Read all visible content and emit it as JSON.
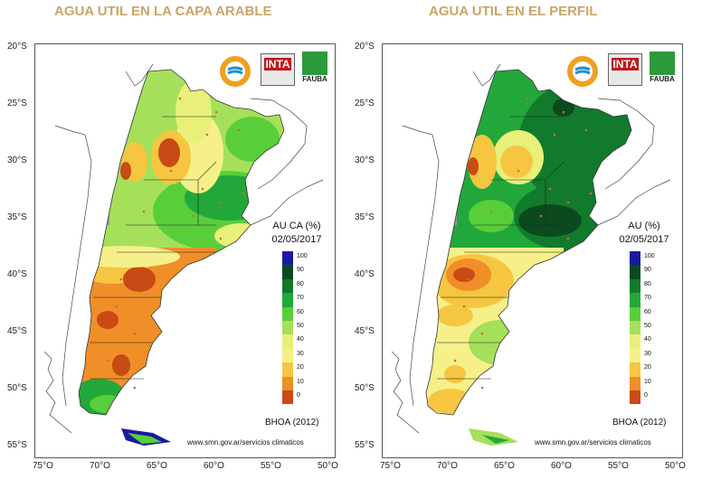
{
  "panels": [
    {
      "title": "AGUA UTIL EN LA CAPA ARABLE",
      "legend_title": "AU CA (%)",
      "date": "02/05/2017",
      "model": "BHOA (2012)",
      "url": "www.smn.gov.ar/servicios climaticos"
    },
    {
      "title": "AGUA UTIL EN EL PERFIL",
      "legend_title": "AU (%)",
      "date": "02/05/2017",
      "model": "BHOA (2012)",
      "url": "www.smn.gov.ar/servicios climaticos"
    }
  ],
  "axes": {
    "lat_labels": [
      "20°S",
      "25°S",
      "30°S",
      "35°S",
      "40°S",
      "45°S",
      "50°S",
      "55°S"
    ],
    "lon_labels": [
      "75°O",
      "70°O",
      "65°O",
      "60°O",
      "55°O",
      "50°O"
    ]
  },
  "legend": {
    "values": [
      "100",
      "90",
      "80",
      "70",
      "60",
      "50",
      "40",
      "30",
      "20",
      "10",
      "0"
    ],
    "colors": [
      "#1a1a9e",
      "#0b4a1e",
      "#127a2c",
      "#22a83a",
      "#58cf3a",
      "#a6e05a",
      "#e8f07a",
      "#f6f08a",
      "#f6c640",
      "#f08e28",
      "#c84a14"
    ]
  },
  "logos": {
    "inta": "INTA",
    "fauba": "FAUBA"
  }
}
